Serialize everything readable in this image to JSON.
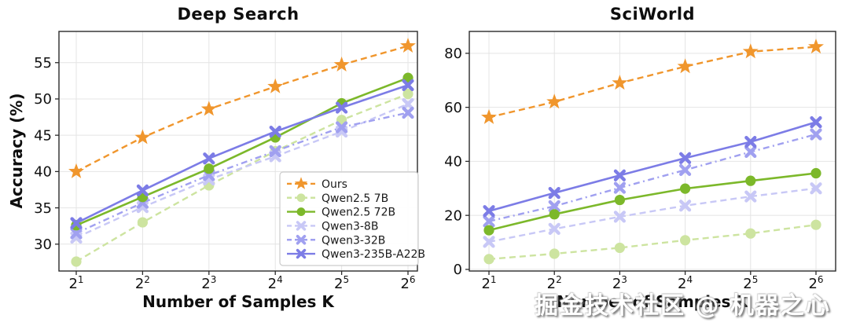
{
  "watermark": {
    "text": "掘金技术社区 @ 机器之心"
  },
  "chart_data": [
    {
      "type": "line",
      "title": "Deep Search",
      "xlabel": "Number of Samples K",
      "ylabel": "Accuracy (%)",
      "x_base": 2,
      "x_exponents": [
        1,
        2,
        3,
        4,
        5,
        6
      ],
      "xtick_labels": [
        "2^1",
        "2^2",
        "2^3",
        "2^4",
        "2^5",
        "2^6"
      ],
      "yticks": [
        30,
        35,
        40,
        45,
        50,
        55
      ],
      "ylim": [
        26.3,
        59.3
      ],
      "grid": true,
      "legend_position": "lower right",
      "show_legend": true,
      "series": [
        {
          "name": "Ours",
          "color": "#F0962D",
          "marker": "star",
          "linestyle": "dashed",
          "values": [
            40.0,
            44.7,
            48.6,
            51.7,
            54.7,
            57.3
          ]
        },
        {
          "name": "Qwen2.5 7B",
          "color": "#CDE4A0",
          "marker": "circle",
          "linestyle": "dashed",
          "values": [
            27.6,
            33.0,
            38.1,
            42.8,
            47.1,
            50.7
          ]
        },
        {
          "name": "Qwen2.5 72B",
          "color": "#7CB82A",
          "marker": "circle",
          "linestyle": "solid",
          "values": [
            32.6,
            36.5,
            40.4,
            44.7,
            49.4,
            52.9
          ]
        },
        {
          "name": "Qwen3-8B",
          "color": "#C8C8F6",
          "marker": "x",
          "linestyle": "dashed",
          "values": [
            30.9,
            35.1,
            38.9,
            42.1,
            45.5,
            49.3
          ]
        },
        {
          "name": "Qwen3-32B",
          "color": "#A0A0F0",
          "marker": "x",
          "linestyle": "dashdot",
          "values": [
            31.5,
            35.7,
            39.5,
            42.8,
            46.1,
            48.1
          ]
        },
        {
          "name": "Qwen3-235B-A22B",
          "color": "#7C7CE6",
          "marker": "x",
          "linestyle": "solid",
          "values": [
            32.9,
            37.4,
            41.8,
            45.5,
            48.8,
            51.9
          ]
        }
      ]
    },
    {
      "type": "line",
      "title": "SciWorld",
      "xlabel": "Number of Samples K",
      "ylabel": "",
      "x_base": 2,
      "x_exponents": [
        1,
        2,
        3,
        4,
        5,
        6
      ],
      "xtick_labels": [
        "2^1",
        "2^2",
        "2^3",
        "2^4",
        "2^5",
        "2^6"
      ],
      "yticks": [
        0,
        20,
        40,
        60,
        80
      ],
      "ylim": [
        -0.6,
        88.1
      ],
      "grid": true,
      "show_legend": false,
      "series": [
        {
          "name": "Ours",
          "color": "#F0962D",
          "marker": "star",
          "linestyle": "dashed",
          "values": [
            56.3,
            62.0,
            69.0,
            75.1,
            80.6,
            82.4
          ]
        },
        {
          "name": "Qwen2.5 7B",
          "color": "#CDE4A0",
          "marker": "circle",
          "linestyle": "dashed",
          "values": [
            3.8,
            5.8,
            8.0,
            10.8,
            13.3,
            16.5
          ]
        },
        {
          "name": "Qwen2.5 72B",
          "color": "#7CB82A",
          "marker": "circle",
          "linestyle": "solid",
          "values": [
            14.5,
            20.4,
            25.7,
            29.9,
            32.8,
            35.6
          ]
        },
        {
          "name": "Qwen3-8B",
          "color": "#C8C8F6",
          "marker": "x",
          "linestyle": "dashed",
          "values": [
            10.2,
            15.0,
            19.5,
            23.6,
            27.0,
            30.0
          ]
        },
        {
          "name": "Qwen3-32B",
          "color": "#A0A0F0",
          "marker": "x",
          "linestyle": "dashdot",
          "values": [
            17.8,
            23.4,
            30.2,
            36.8,
            43.5,
            50.0
          ]
        },
        {
          "name": "Qwen3-235B-A22B",
          "color": "#7C7CE6",
          "marker": "x",
          "linestyle": "solid",
          "values": [
            21.6,
            28.3,
            34.8,
            41.2,
            47.2,
            54.5
          ]
        }
      ]
    }
  ]
}
